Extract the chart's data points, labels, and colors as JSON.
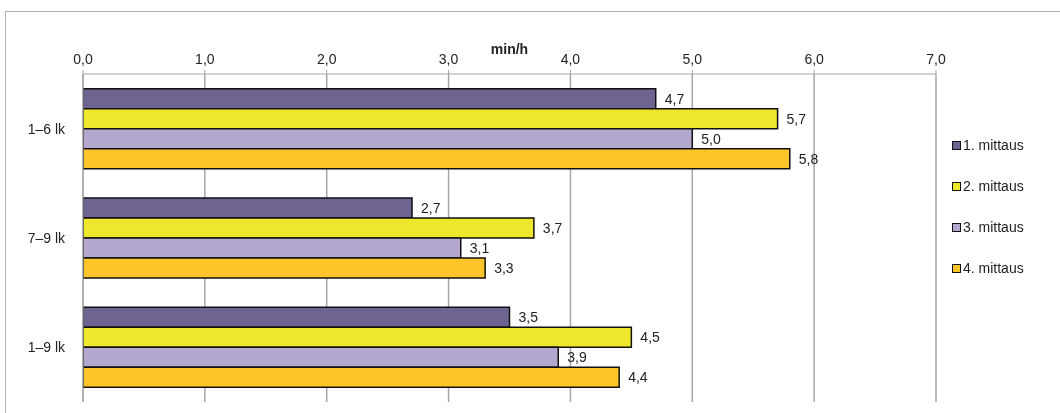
{
  "chart_data": {
    "type": "bar",
    "orientation": "horizontal",
    "xlabel": "min/h",
    "categories": [
      "1–6 lk",
      "7–9 lk",
      "1–9 lk"
    ],
    "series": [
      {
        "name": "1. mittaus",
        "color": "#6f6391",
        "values": [
          4.7,
          2.7,
          3.5
        ],
        "value_labels": [
          "4,7",
          "2,7",
          "3,5"
        ]
      },
      {
        "name": "2. mittaus",
        "color": "#efe72b",
        "values": [
          5.7,
          3.7,
          4.5
        ],
        "value_labels": [
          "5,7",
          "3,7",
          "4,5"
        ]
      },
      {
        "name": "3. mittaus",
        "color": "#b4a7cd",
        "values": [
          5.0,
          3.1,
          3.9
        ],
        "value_labels": [
          "5,0",
          "3,1",
          "3,9"
        ]
      },
      {
        "name": "4. mittaus",
        "color": "#fec52b",
        "values": [
          5.8,
          3.3,
          4.4
        ],
        "value_labels": [
          "5,8",
          "3,3",
          "4,4"
        ]
      }
    ],
    "xlim": [
      0,
      7
    ],
    "xticks": [
      {
        "value": 0,
        "label": "0,0"
      },
      {
        "value": 1,
        "label": "1,0"
      },
      {
        "value": 2,
        "label": "2,0"
      },
      {
        "value": 3,
        "label": "3,0"
      },
      {
        "value": 4,
        "label": "4,0"
      },
      {
        "value": 5,
        "label": "5,0"
      },
      {
        "value": 6,
        "label": "6,0"
      },
      {
        "value": 7,
        "label": "7,0"
      }
    ],
    "grid": "x",
    "legend": "right"
  }
}
